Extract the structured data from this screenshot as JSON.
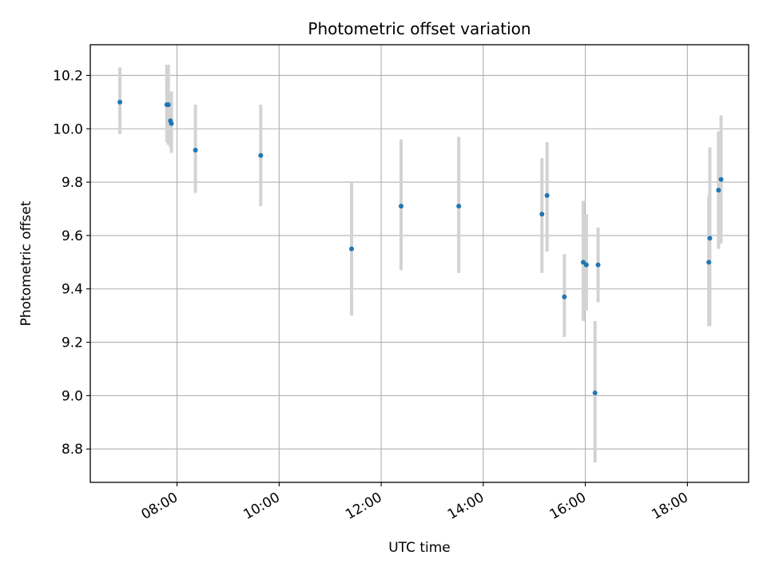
{
  "chart_data": {
    "type": "scatter",
    "title": "Photometric offset variation",
    "xlabel": "UTC time",
    "ylabel": "Photometric offset",
    "x_unit": "UTC hour of day",
    "xlim": [
      6.3,
      19.2
    ],
    "ylim": [
      8.675,
      10.315
    ],
    "grid": true,
    "xticks": [
      {
        "value": 8,
        "label": "08:00"
      },
      {
        "value": 10,
        "label": "10:00"
      },
      {
        "value": 12,
        "label": "12:00"
      },
      {
        "value": 14,
        "label": "14:00"
      },
      {
        "value": 16,
        "label": "16:00"
      },
      {
        "value": 18,
        "label": "18:00"
      }
    ],
    "yticks": [
      {
        "value": 8.8,
        "label": "8.8"
      },
      {
        "value": 9.0,
        "label": "9.0"
      },
      {
        "value": 9.2,
        "label": "9.2"
      },
      {
        "value": 9.4,
        "label": "9.4"
      },
      {
        "value": 9.6,
        "label": "9.6"
      },
      {
        "value": 9.8,
        "label": "9.8"
      },
      {
        "value": 10.0,
        "label": "10.0"
      },
      {
        "value": 10.2,
        "label": "10.2"
      }
    ],
    "colors": {
      "point": "#1f77b4",
      "errorbar": "#d3d3d3",
      "grid": "#b0b0b0"
    },
    "points": [
      {
        "x": 6.88,
        "y": 10.1,
        "ylow": 9.98,
        "yhigh": 10.23
      },
      {
        "x": 7.8,
        "y": 10.09,
        "ylow": 9.95,
        "yhigh": 10.24
      },
      {
        "x": 7.83,
        "y": 10.09,
        "ylow": 9.94,
        "yhigh": 10.24
      },
      {
        "x": 7.87,
        "y": 10.03,
        "ylow": 9.93,
        "yhigh": 10.14
      },
      {
        "x": 7.89,
        "y": 10.02,
        "ylow": 9.91,
        "yhigh": 10.14
      },
      {
        "x": 8.36,
        "y": 9.92,
        "ylow": 9.76,
        "yhigh": 10.09
      },
      {
        "x": 9.64,
        "y": 9.9,
        "ylow": 9.71,
        "yhigh": 10.09
      },
      {
        "x": 11.42,
        "y": 9.55,
        "ylow": 9.3,
        "yhigh": 9.8
      },
      {
        "x": 12.39,
        "y": 9.71,
        "ylow": 9.47,
        "yhigh": 9.96
      },
      {
        "x": 13.52,
        "y": 9.71,
        "ylow": 9.46,
        "yhigh": 9.97
      },
      {
        "x": 15.15,
        "y": 9.68,
        "ylow": 9.46,
        "yhigh": 9.89
      },
      {
        "x": 15.25,
        "y": 9.75,
        "ylow": 9.54,
        "yhigh": 9.95
      },
      {
        "x": 15.59,
        "y": 9.37,
        "ylow": 9.22,
        "yhigh": 9.53
      },
      {
        "x": 15.96,
        "y": 9.5,
        "ylow": 9.28,
        "yhigh": 9.73
      },
      {
        "x": 16.02,
        "y": 9.49,
        "ylow": 9.32,
        "yhigh": 9.68
      },
      {
        "x": 16.19,
        "y": 9.01,
        "ylow": 8.75,
        "yhigh": 9.28
      },
      {
        "x": 16.25,
        "y": 9.49,
        "ylow": 9.35,
        "yhigh": 9.63
      },
      {
        "x": 18.42,
        "y": 9.5,
        "ylow": 9.26,
        "yhigh": 9.75
      },
      {
        "x": 18.44,
        "y": 9.59,
        "ylow": 9.26,
        "yhigh": 9.93
      },
      {
        "x": 18.61,
        "y": 9.77,
        "ylow": 9.55,
        "yhigh": 9.99
      },
      {
        "x": 18.66,
        "y": 9.81,
        "ylow": 9.57,
        "yhigh": 10.05
      }
    ]
  }
}
